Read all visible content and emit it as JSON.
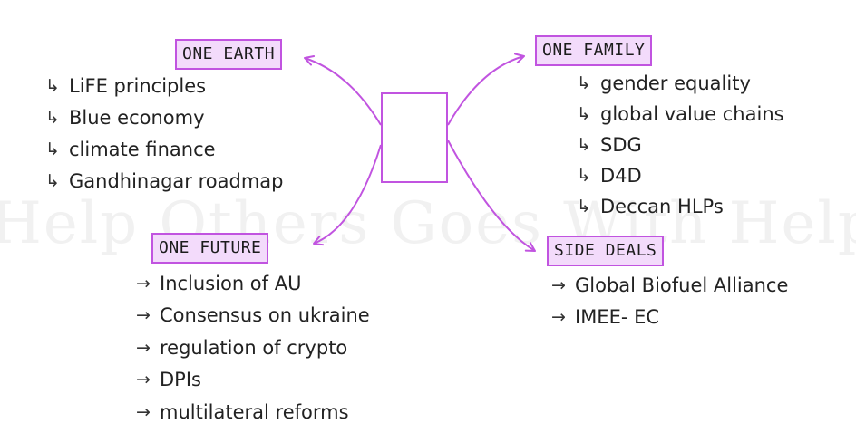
{
  "watermark": "Help Others Goes With Help",
  "colors": {
    "accent": "#c154e0",
    "heading_fill": "#f3dbfb",
    "text": "#1c1c1c"
  },
  "icons": {
    "hook_bullet": "down-right-hook-arrow-icon",
    "arrow_bullet": "right-arrow-icon"
  },
  "sections": {
    "one_earth": {
      "title": "ONE EARTH",
      "bullet": "↳",
      "items": [
        "LiFE principles",
        "Blue economy",
        "climate finance",
        "Gandhinagar roadmap"
      ]
    },
    "one_family": {
      "title": "ONE FAMILY",
      "bullet": "↳",
      "items": [
        "gender equality",
        "global value chains",
        "SDG",
        "D4D",
        "Deccan HLPs"
      ]
    },
    "one_future": {
      "title": "ONE FUTURE",
      "bullet": "→",
      "items": [
        "Inclusion of AU",
        "Consensus on ukraine",
        "regulation of crypto",
        "DPIs",
        "multilateral reforms"
      ]
    },
    "side_deals": {
      "title": "SIDE DEALS",
      "bullet": "→",
      "items": [
        "Global Biofuel Alliance",
        "IMEE- EC"
      ]
    }
  }
}
